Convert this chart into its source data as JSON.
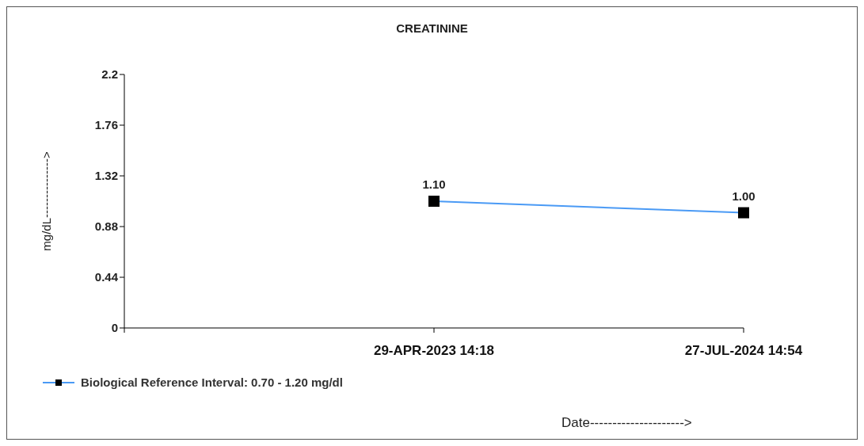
{
  "chart_data": {
    "type": "line",
    "title": "CREATININE",
    "xlabel": "Date--------------------->",
    "ylabel": "mg/dL--------------->",
    "categories": [
      null,
      "29-APR-2023 14:18",
      "27-JUL-2024 14:54"
    ],
    "series": [
      {
        "name": "Biological Reference Interval: 0.70 - 1.20 mg/dl",
        "color": "#4a9af5",
        "values": [
          null,
          1.1,
          1.0
        ],
        "value_labels": [
          null,
          "1.10",
          "1.00"
        ]
      }
    ],
    "ylim": [
      0,
      2.2
    ],
    "yticks": [
      0,
      0.44,
      0.88,
      1.32,
      1.76,
      2.2
    ],
    "grid": false,
    "legend": "bottom left",
    "marker": "square",
    "line_style": "solid"
  }
}
